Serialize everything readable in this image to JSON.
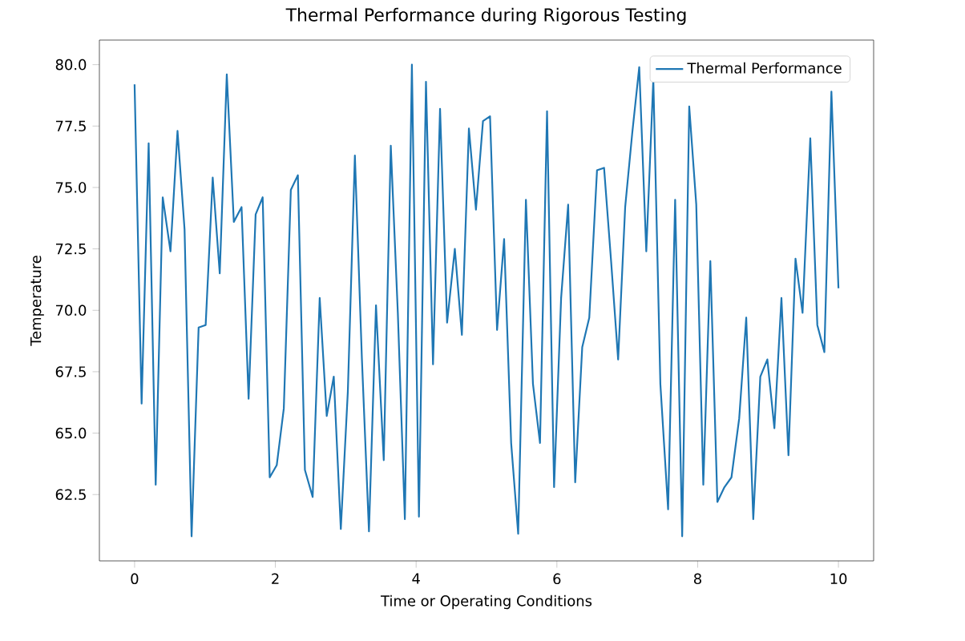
{
  "chart_data": {
    "type": "line",
    "title": "Thermal Performance during Rigorous Testing",
    "xlabel": "Time or Operating Conditions",
    "ylabel": "Temperature",
    "xlim": [
      -0.5,
      10.5
    ],
    "ylim": [
      59.8,
      81.0
    ],
    "xticks": [
      0,
      2,
      4,
      6,
      8,
      10
    ],
    "yticks": [
      {
        "value": 62.5,
        "label": "62.5"
      },
      {
        "value": 65,
        "label": "65.0"
      },
      {
        "value": 67.5,
        "label": "67.5"
      },
      {
        "value": 70,
        "label": "70.0"
      },
      {
        "value": 72.5,
        "label": "72.5"
      },
      {
        "value": 75,
        "label": "75.0"
      },
      {
        "value": 77.5,
        "label": "77.5"
      },
      {
        "value": 80,
        "label": "80.0"
      }
    ],
    "legend": "top right",
    "grid": false,
    "series": [
      {
        "name": "Thermal Performance",
        "color": "#1f77b4",
        "x": [
          0,
          0.1,
          0.2,
          0.3,
          0.4,
          0.51,
          0.61,
          0.71,
          0.81,
          0.91,
          1.01,
          1.11,
          1.21,
          1.31,
          1.41,
          1.52,
          1.62,
          1.72,
          1.82,
          1.92,
          2.02,
          2.12,
          2.22,
          2.32,
          2.42,
          2.53,
          2.63,
          2.73,
          2.83,
          2.93,
          3.03,
          3.13,
          3.23,
          3.33,
          3.43,
          3.54,
          3.64,
          3.74,
          3.84,
          3.94,
          4.04,
          4.14,
          4.24,
          4.34,
          4.44,
          4.55,
          4.65,
          4.75,
          4.85,
          4.95,
          5.05,
          5.15,
          5.25,
          5.35,
          5.45,
          5.56,
          5.66,
          5.76,
          5.86,
          5.96,
          6.06,
          6.16,
          6.26,
          6.36,
          6.46,
          6.57,
          6.67,
          6.77,
          6.87,
          6.97,
          7.07,
          7.17,
          7.27,
          7.37,
          7.47,
          7.58,
          7.68,
          7.78,
          7.88,
          7.98,
          8.08,
          8.18,
          8.28,
          8.38,
          8.48,
          8.59,
          8.69,
          8.79,
          8.89,
          8.99,
          9.09,
          9.19,
          9.29,
          9.39,
          9.49,
          9.6,
          9.7,
          9.8,
          9.9,
          10.0
        ],
        "values": [
          79.2,
          66.2,
          76.8,
          62.9,
          74.6,
          72.4,
          77.3,
          73.3,
          60.8,
          69.3,
          69.4,
          75.4,
          71.5,
          79.6,
          73.6,
          74.2,
          66.4,
          73.9,
          74.6,
          63.2,
          63.7,
          66.0,
          74.9,
          75.5,
          63.5,
          62.4,
          70.5,
          65.7,
          67.3,
          61.1,
          66.7,
          76.3,
          68.0,
          61.0,
          70.2,
          63.9,
          76.7,
          69.9,
          61.5,
          80.0,
          61.6,
          79.3,
          67.8,
          78.2,
          69.5,
          72.5,
          69.0,
          77.4,
          74.1,
          77.7,
          77.9,
          69.2,
          72.9,
          64.6,
          60.9,
          74.5,
          67.0,
          64.6,
          78.1,
          62.8,
          70.5,
          74.3,
          63.0,
          68.5,
          69.7,
          75.7,
          75.8,
          72.0,
          68.0,
          74.2,
          77.2,
          79.9,
          72.4,
          79.4,
          67.0,
          61.9,
          74.5,
          60.8,
          78.3,
          74.3,
          62.9,
          72.0,
          62.2,
          62.8,
          63.2,
          65.6,
          69.7,
          61.5,
          67.3,
          68.0,
          65.2,
          70.5,
          64.1,
          72.1,
          69.9,
          77.0,
          69.4,
          68.3,
          78.9,
          70.9
        ]
      }
    ]
  }
}
